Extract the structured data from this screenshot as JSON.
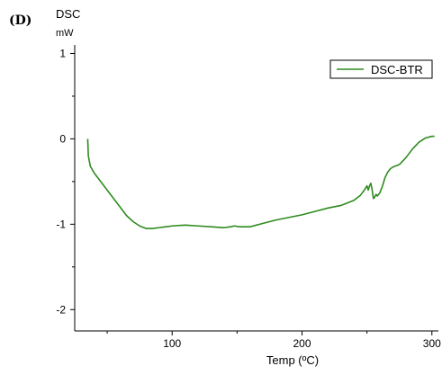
{
  "panel_label": "(D)",
  "chart_data": {
    "type": "line",
    "title": "",
    "xlabel": "Temp (ºC)",
    "ylabel": "DSC",
    "yunit": "mW",
    "xlim": [
      25,
      305
    ],
    "ylim": [
      -2.25,
      1.1
    ],
    "xticks": [
      100,
      200,
      300
    ],
    "yticks": [
      1,
      0,
      -1,
      -2
    ],
    "xtick_labels": [
      "100",
      "200",
      "300"
    ],
    "ytick_labels": [
      "1",
      "0",
      "-1",
      "-2"
    ],
    "legend_position": "top-right",
    "line_color": "#2e8b1e",
    "series": [
      {
        "name": "DSC-BTR",
        "x": [
          35,
          35.5,
          37,
          40,
          45,
          50,
          55,
          60,
          65,
          70,
          75,
          80,
          85,
          90,
          95,
          100,
          110,
          120,
          130,
          140,
          145,
          148,
          152,
          160,
          170,
          180,
          190,
          200,
          210,
          220,
          230,
          240,
          245,
          248,
          250,
          251,
          252,
          253,
          254,
          255,
          256,
          257,
          258,
          260,
          262,
          264,
          266,
          268,
          270,
          275,
          280,
          285,
          290,
          295,
          300,
          302
        ],
        "y": [
          0.0,
          -0.2,
          -0.32,
          -0.4,
          -0.5,
          -0.6,
          -0.7,
          -0.8,
          -0.9,
          -0.97,
          -1.02,
          -1.05,
          -1.05,
          -1.04,
          -1.03,
          -1.02,
          -1.01,
          -1.02,
          -1.03,
          -1.04,
          -1.03,
          -1.02,
          -1.03,
          -1.03,
          -0.99,
          -0.95,
          -0.92,
          -0.89,
          -0.85,
          -0.81,
          -0.78,
          -0.72,
          -0.66,
          -0.6,
          -0.55,
          -0.6,
          -0.55,
          -0.52,
          -0.6,
          -0.7,
          -0.68,
          -0.65,
          -0.67,
          -0.63,
          -0.55,
          -0.45,
          -0.39,
          -0.35,
          -0.33,
          -0.3,
          -0.22,
          -0.12,
          -0.04,
          0.01,
          0.03,
          0.03
        ]
      }
    ]
  }
}
